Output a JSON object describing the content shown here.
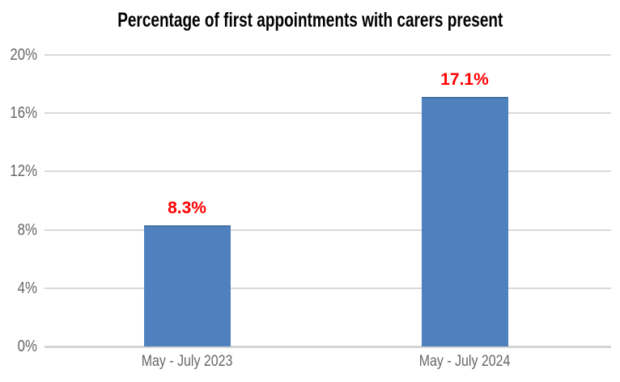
{
  "chart_data": {
    "type": "bar",
    "title": "Percentage of first appointments with carers present",
    "categories": [
      "May - July 2023",
      "May - July 2024"
    ],
    "values": [
      8.3,
      17.1
    ],
    "data_labels": [
      "8.3%",
      "17.1%"
    ],
    "xlabel": "",
    "ylabel": "",
    "ylim": [
      0,
      20
    ],
    "yticks": [
      {
        "value": 0,
        "label": "0%"
      },
      {
        "value": 4,
        "label": "4%"
      },
      {
        "value": 8,
        "label": "8%"
      },
      {
        "value": 12,
        "label": "12%"
      },
      {
        "value": 16,
        "label": "16%"
      },
      {
        "value": 20,
        "label": "20%"
      }
    ],
    "grid": true,
    "legend": false,
    "colors": {
      "bar": "#4E81BD",
      "bar_border": "#446F9F",
      "data_label": "#FF0000",
      "tick_text": "#666666",
      "gridline": "#D9D9D9",
      "axis_line": "#D4D4D4",
      "title_text": "#000000",
      "background": "#FFFFFF"
    }
  }
}
